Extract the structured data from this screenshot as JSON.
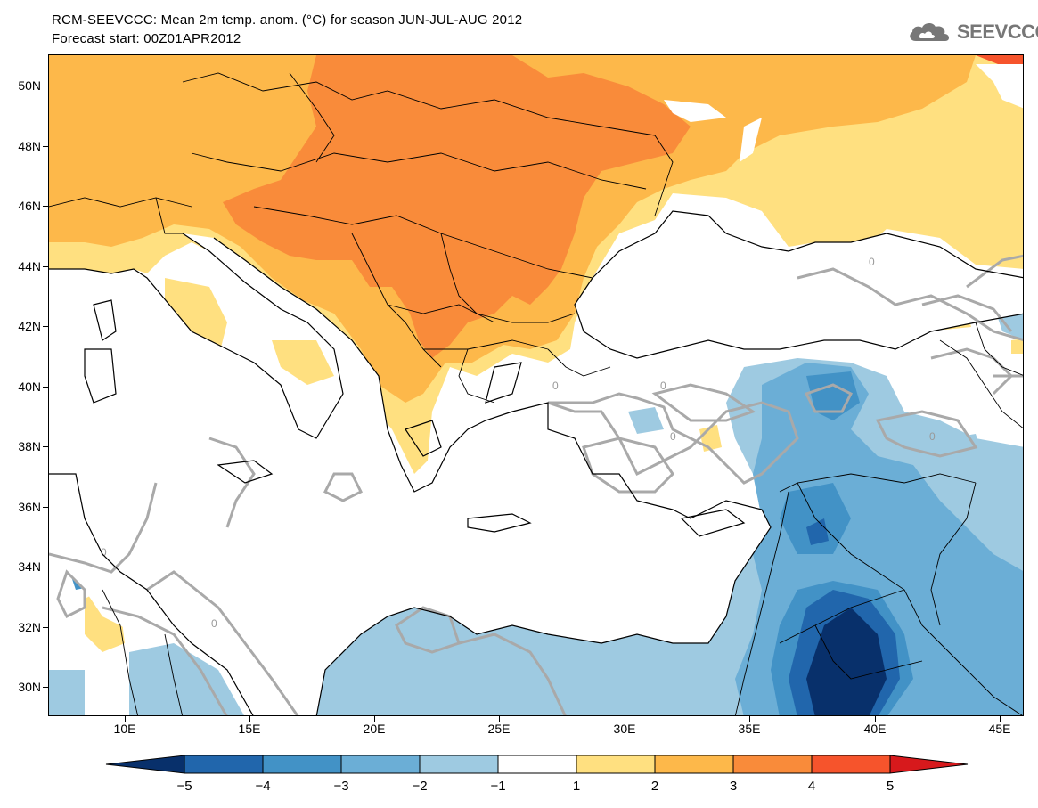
{
  "title": {
    "line1": "RCM-SEEVCCC: Mean 2m temp. anom. (°C) for season JUN-JUL-AUG 2012",
    "line2": "Forecast start: 00Z01APR2012"
  },
  "logo": {
    "text": "SEEVCCC",
    "icon": "cloud-icon"
  },
  "axes": {
    "lat_labels": [
      "50N",
      "48N",
      "46N",
      "44N",
      "42N",
      "40N",
      "38N",
      "36N",
      "34N",
      "32N",
      "30N"
    ],
    "lon_labels": [
      "10E",
      "15E",
      "20E",
      "25E",
      "30E",
      "35E",
      "40E",
      "45E"
    ]
  },
  "colorbar": {
    "tick_labels": [
      "−5",
      "−4",
      "−3",
      "−2",
      "−1",
      "1",
      "2",
      "3",
      "4",
      "5"
    ],
    "colors": [
      "#08306b",
      "#2166ac",
      "#4292c6",
      "#6baed6",
      "#9ecae1",
      "#ffffff",
      "#ffe080",
      "#fdb84a",
      "#f98b3a",
      "#f6542c",
      "#d7191c"
    ]
  },
  "contour_label": "0",
  "map": {
    "region": "South-East Europe, Eastern Mediterranean and Middle East",
    "lon_range": [
      7,
      46
    ],
    "lat_range": [
      29,
      51
    ]
  }
}
